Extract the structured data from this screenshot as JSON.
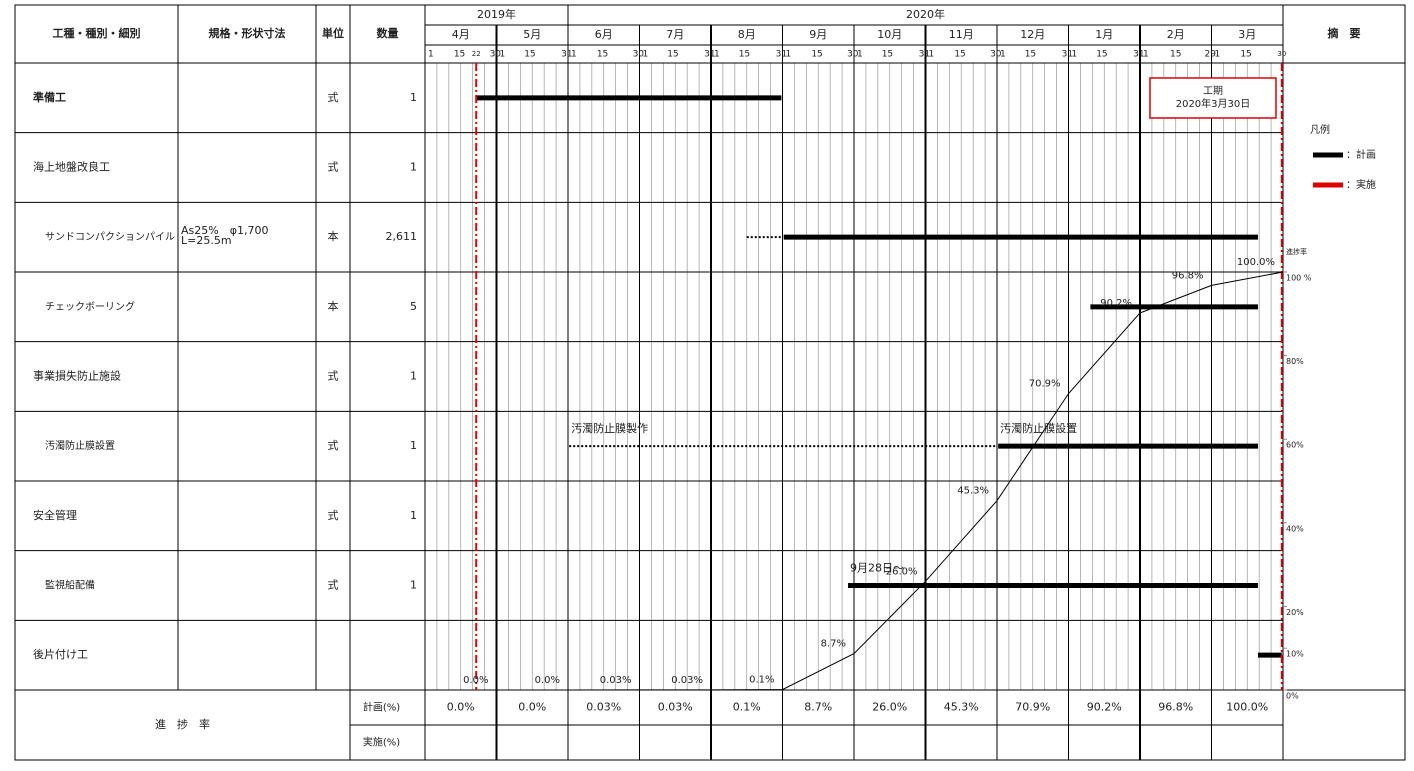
{
  "header": {
    "columns": [
      "工種・種別・細別",
      "規格・形状寸法",
      "単位",
      "数量"
    ],
    "remarks": "摘　要"
  },
  "schedule": {
    "years": [
      {
        "label": "2019年",
        "months": [
          {
            "label": "4月",
            "days": [
              1,
              15,
              22,
              30
            ]
          },
          {
            "label": "5月",
            "days": [
              1,
              15,
              31
            ]
          }
        ]
      },
      {
        "label": "2020年",
        "months": [
          {
            "label": "6月",
            "days": [
              1,
              15,
              30
            ]
          },
          {
            "label": "7月",
            "days": [
              1,
              15,
              31
            ]
          },
          {
            "label": "8月",
            "days": [
              1,
              15,
              31
            ]
          },
          {
            "label": "9月",
            "days": [
              1,
              15,
              30
            ]
          },
          {
            "label": "10月",
            "days": [
              1,
              15,
              31
            ]
          },
          {
            "label": "11月",
            "days": [
              1,
              15,
              30
            ]
          },
          {
            "label": "12月",
            "days": [
              1,
              15,
              31
            ]
          },
          {
            "label": "1月",
            "days": [
              1,
              15,
              31
            ]
          },
          {
            "label": "2月",
            "days": [
              1,
              15,
              29
            ]
          },
          {
            "label": "3月",
            "days": [
              1,
              15,
              30
            ]
          }
        ]
      }
    ],
    "start_line": {
      "month": "4月",
      "day": 22
    },
    "end_line": {
      "month": "3月",
      "day": 30
    },
    "marker_color": "#e00000"
  },
  "rows": [
    {
      "name": "準備工",
      "level": 0,
      "bold": true,
      "spec": [],
      "unit": "式",
      "quantity": "1",
      "bars": [
        {
          "from": {
            "month": "4月",
            "day": 22
          },
          "to": {
            "month": "8月",
            "day": 31
          },
          "style": "solid"
        }
      ]
    },
    {
      "name": "海上地盤改良工",
      "level": 0,
      "spec": [],
      "unit": "式",
      "quantity": "1",
      "bars": []
    },
    {
      "name": "サンドコンパクションパイル",
      "level": 1,
      "spec": [
        "As25%　φ1,700",
        "L=25.5m"
      ],
      "unit": "本",
      "quantity": "2,611",
      "bars": [
        {
          "from": {
            "month": "8月",
            "day": 16
          },
          "to": {
            "month": "8月",
            "day": 31
          },
          "style": "dotted"
        },
        {
          "from": {
            "month": "9月",
            "day": 1
          },
          "to": {
            "month": "3月",
            "day": 20
          },
          "style": "solid"
        }
      ]
    },
    {
      "name": "チェックボーリング",
      "level": 1,
      "spec": [],
      "unit": "本",
      "quantity": "5",
      "bars": [
        {
          "from": {
            "month": "1月",
            "day": 10
          },
          "to": {
            "month": "3月",
            "day": 20
          },
          "style": "solid"
        }
      ]
    },
    {
      "name": "事業損失防止施設",
      "level": 0,
      "spec": [],
      "unit": "式",
      "quantity": "1",
      "bars": []
    },
    {
      "name": "汚濁防止膜設置",
      "level": 1,
      "spec": [],
      "unit": "式",
      "quantity": "1",
      "bars": [
        {
          "from": {
            "month": "6月",
            "day": 1
          },
          "to": {
            "month": "11月",
            "day": 30
          },
          "style": "dotted",
          "label": "汚濁防止膜製作"
        },
        {
          "from": {
            "month": "12月",
            "day": 1
          },
          "to": {
            "month": "3月",
            "day": 20
          },
          "style": "solid",
          "label": "汚濁防止膜設置"
        }
      ]
    },
    {
      "name": "安全管理",
      "level": 0,
      "spec": [],
      "unit": "式",
      "quantity": "1",
      "bars": []
    },
    {
      "name": "監視船配備",
      "level": 1,
      "spec": [],
      "unit": "式",
      "quantity": "1",
      "bars": [
        {
          "from": {
            "month": "9月",
            "day": 28
          },
          "to": {
            "month": "3月",
            "day": 20
          },
          "style": "solid",
          "label": "9月28日～"
        }
      ]
    },
    {
      "name": "後片付け工",
      "level": 0,
      "spec": [],
      "unit": "",
      "quantity": "",
      "bars": [
        {
          "from": {
            "month": "3月",
            "day": 20
          },
          "to": {
            "month": "3月",
            "day": 30
          },
          "style": "solid"
        }
      ]
    }
  ],
  "progress": {
    "title": "進　捗　率",
    "plan_label": "計画(%)",
    "actual_label": "実施(%)",
    "actual_color": "#e00000",
    "plan": [
      {
        "value": 0,
        "label": "0.0%"
      },
      {
        "value": 0,
        "label": "0.0%"
      },
      {
        "value": 0.03,
        "label": "0.03%"
      },
      {
        "value": 0.03,
        "label": "0.03%"
      },
      {
        "value": 0.1,
        "label": "0.1%"
      },
      {
        "value": 8.7,
        "label": "8.7%"
      },
      {
        "value": 26.0,
        "label": "26.0%"
      },
      {
        "value": 45.3,
        "label": "45.3%"
      },
      {
        "value": 70.9,
        "label": "70.9%"
      },
      {
        "value": 90.2,
        "label": "90.2%"
      },
      {
        "value": 96.8,
        "label": "96.8%"
      },
      {
        "value": 100.0,
        "label": "100.0%"
      }
    ],
    "axis": {
      "title": "進捗率",
      "lim": [
        0,
        100
      ],
      "ticks": [
        {
          "value": 0,
          "label": "0%"
        },
        {
          "value": 10,
          "label": "10%"
        },
        {
          "value": 20,
          "label": "20%"
        },
        {
          "value": 40,
          "label": "40%"
        },
        {
          "value": 60,
          "label": "60%"
        },
        {
          "value": 80,
          "label": "80%"
        },
        {
          "value": 100,
          "label": "100 %"
        }
      ]
    }
  },
  "legend": {
    "title": "凡例",
    "items": [
      {
        "label": "：計画",
        "color": "#000000"
      },
      {
        "label": "：実施",
        "color": "#e00000"
      }
    ]
  },
  "period": {
    "title": "工期",
    "date": "2020年3月30日",
    "color": "#e00000"
  }
}
